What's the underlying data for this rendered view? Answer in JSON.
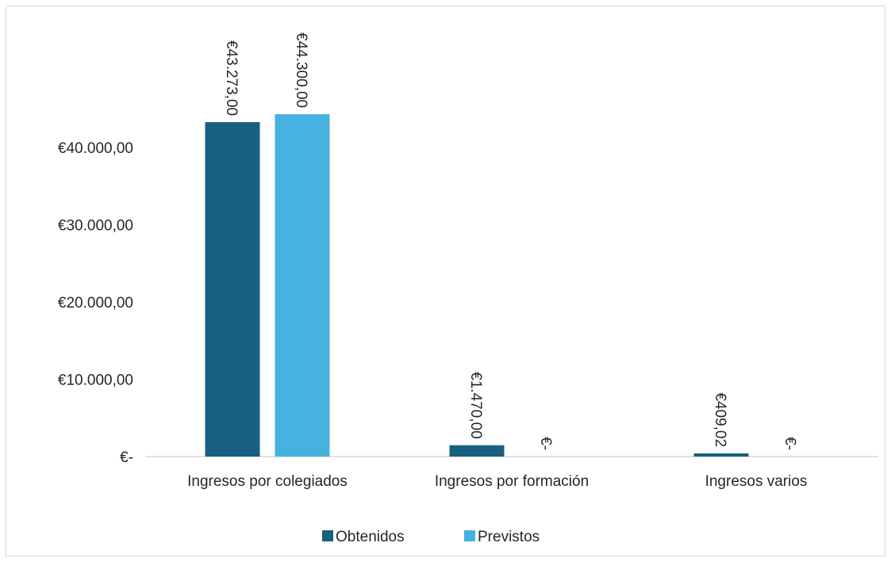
{
  "chart_data": {
    "type": "bar",
    "categories": [
      "Ingresos por colegiados",
      "Ingresos por formación",
      "Ingresos varios"
    ],
    "series": [
      {
        "name": "Obtenidos",
        "values": [
          43273.0,
          1470.0,
          409.02
        ],
        "color": "#17607f",
        "labels": [
          "€43.273,00",
          "€1.470,00",
          "€409,02"
        ]
      },
      {
        "name": "Previstos",
        "values": [
          44300.0,
          0,
          0
        ],
        "color": "#47b1e0",
        "labels": [
          "€44.300,00",
          "€-",
          "€-"
        ]
      }
    ],
    "yticks": [
      {
        "value": 0,
        "label": "€-"
      },
      {
        "value": 10000,
        "label": "€10.000,00"
      },
      {
        "value": 20000,
        "label": "€20.000,00"
      },
      {
        "value": 30000,
        "label": "€30.000,00"
      },
      {
        "value": 40000,
        "label": "€40.000,00"
      }
    ],
    "ylim": [
      0,
      50000
    ],
    "grid": false,
    "legend_position": "bottom"
  }
}
